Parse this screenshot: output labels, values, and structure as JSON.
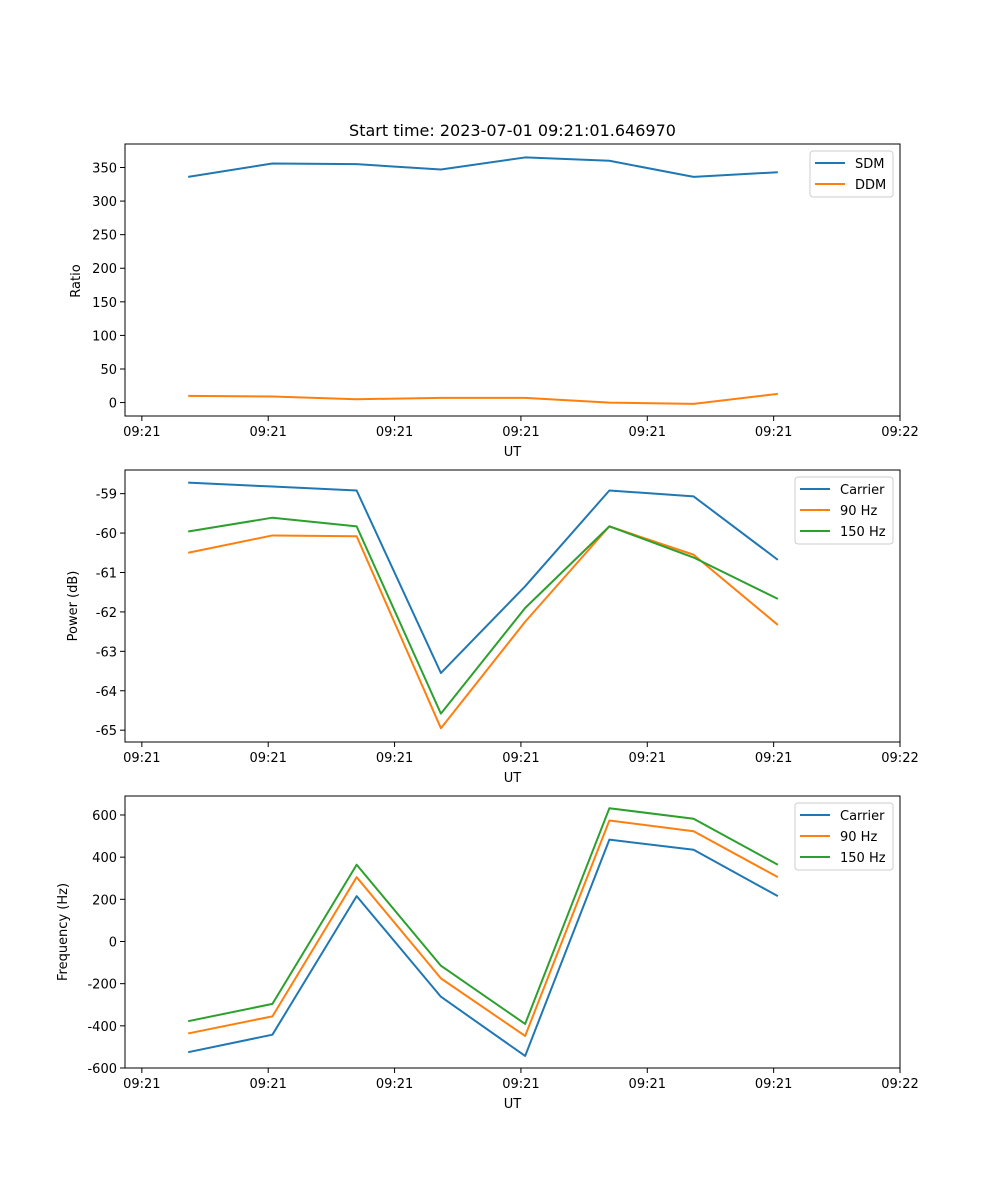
{
  "chart_data": [
    {
      "type": "line",
      "title": "Start time: 2023-07-01 09:21:01.646970",
      "xlabel": "UT",
      "ylabel": "Ratio",
      "ylim": [
        -20,
        385
      ],
      "yticks": [
        0,
        50,
        100,
        150,
        200,
        250,
        300,
        350
      ],
      "xticks": [
        "09:21",
        "09:21",
        "09:21",
        "09:21",
        "09:21",
        "09:21",
        "09:22"
      ],
      "legend_position": "top-right",
      "series": [
        {
          "name": "SDM",
          "color": "#1f77b4",
          "values": [
            336,
            356,
            355,
            347,
            365,
            360,
            336,
            343
          ]
        },
        {
          "name": "DDM",
          "color": "#ff7f0e",
          "values": [
            10,
            9,
            5,
            7,
            7,
            0,
            -2,
            13
          ]
        }
      ]
    },
    {
      "type": "line",
      "title": "",
      "xlabel": "UT",
      "ylabel": "Power (dB)",
      "ylim": [
        -65.3,
        -58.4
      ],
      "yticks": [
        -59,
        -60,
        -61,
        -62,
        -63,
        -64,
        -65
      ],
      "xticks": [
        "09:21",
        "09:21",
        "09:21",
        "09:21",
        "09:21",
        "09:21",
        "09:22"
      ],
      "legend_position": "top-right",
      "series": [
        {
          "name": "Carrier",
          "color": "#1f77b4",
          "values": [
            -58.72,
            -58.82,
            -58.92,
            -63.55,
            -61.35,
            -58.92,
            -59.07,
            -60.68
          ]
        },
        {
          "name": "90 Hz",
          "color": "#ff7f0e",
          "values": [
            -60.5,
            -60.06,
            -60.08,
            -64.95,
            -62.25,
            -59.83,
            -60.55,
            -62.33
          ]
        },
        {
          "name": "150 Hz",
          "color": "#2ca02c",
          "values": [
            -59.96,
            -59.61,
            -59.83,
            -64.58,
            -61.9,
            -59.83,
            -60.62,
            -61.67
          ]
        }
      ]
    },
    {
      "type": "line",
      "title": "",
      "xlabel": "UT",
      "ylabel": "Frequency (Hz)",
      "ylim": [
        -600,
        690
      ],
      "yticks": [
        600,
        400,
        200,
        0,
        -200,
        -400,
        -600
      ],
      "xticks": [
        "09:21",
        "09:21",
        "09:21",
        "09:21",
        "09:21",
        "09:21",
        "09:22"
      ],
      "legend_position": "top-right",
      "series": [
        {
          "name": "Carrier",
          "color": "#1f77b4",
          "values": [
            -525,
            -442,
            215,
            -262,
            -543,
            483,
            435,
            215
          ]
        },
        {
          "name": "90 Hz",
          "color": "#ff7f0e",
          "values": [
            -436,
            -355,
            305,
            -175,
            -448,
            574,
            523,
            305
          ]
        },
        {
          "name": "150 Hz",
          "color": "#2ca02c",
          "values": [
            -378,
            -296,
            364,
            -115,
            -391,
            632,
            582,
            364
          ]
        }
      ]
    }
  ]
}
